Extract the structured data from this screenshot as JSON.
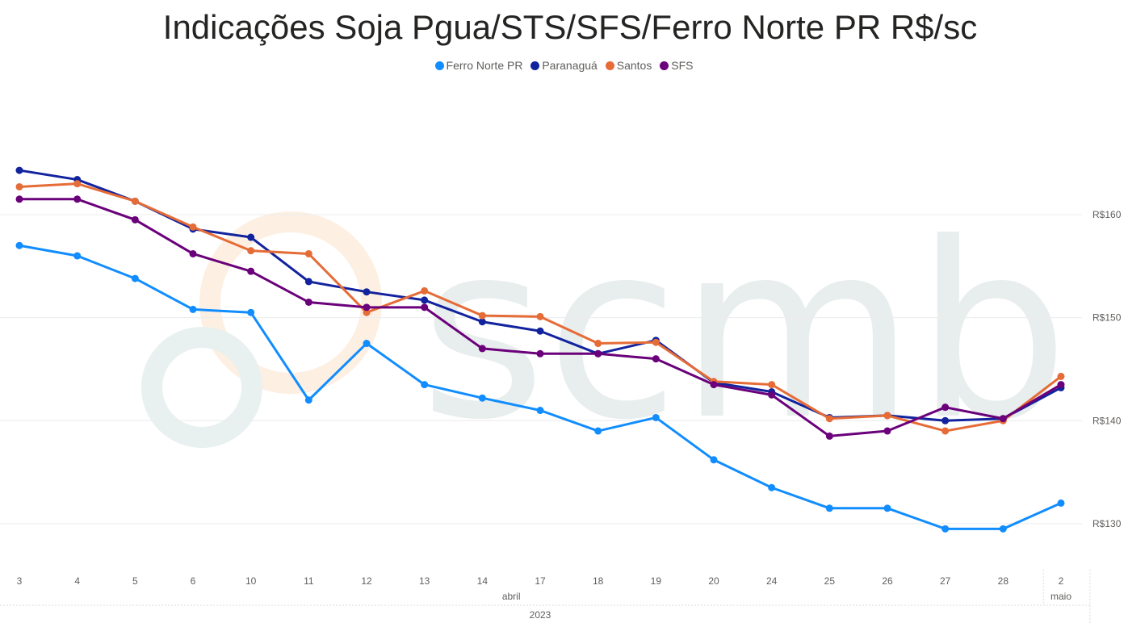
{
  "chart_data": {
    "type": "line",
    "title": "Indicações Soja Pgua/STS/SFS/Ferro Norte PR R$/sc",
    "categories": [
      "3",
      "4",
      "5",
      "6",
      "10",
      "11",
      "12",
      "13",
      "14",
      "17",
      "18",
      "19",
      "20",
      "24",
      "25",
      "26",
      "27",
      "28",
      "2"
    ],
    "month_labels": [
      {
        "label": "abril",
        "from": 0,
        "to": 17
      },
      {
        "label": "maio",
        "from": 18,
        "to": 18
      }
    ],
    "year_label": "2023",
    "y_ticks": [
      "R$130",
      "R$140",
      "R$150",
      "R$160"
    ],
    "y_tick_values": [
      130,
      140,
      150,
      160
    ],
    "ylim": [
      126,
      173
    ],
    "grid": true,
    "legend_position": "top-center",
    "series": [
      {
        "name": "Ferro Norte PR",
        "color": "#118DFF",
        "values": [
          157.0,
          156.0,
          153.8,
          150.8,
          150.5,
          142.0,
          147.5,
          143.5,
          142.2,
          141.0,
          139.0,
          140.3,
          136.2,
          133.5,
          131.5,
          131.5,
          129.5,
          129.5,
          132.0
        ]
      },
      {
        "name": "Paranaguá",
        "color": "#12239E",
        "values": [
          164.3,
          163.4,
          161.3,
          158.6,
          157.8,
          153.5,
          152.5,
          151.7,
          149.6,
          148.7,
          146.5,
          147.8,
          143.7,
          142.8,
          140.3,
          140.5,
          140.0,
          140.2,
          143.2
        ]
      },
      {
        "name": "Santos",
        "color": "#E66C37",
        "values": [
          162.7,
          163.0,
          161.3,
          158.8,
          156.5,
          156.2,
          150.5,
          152.6,
          150.2,
          150.1,
          147.5,
          147.6,
          143.8,
          143.5,
          140.2,
          140.5,
          139.0,
          140.0,
          144.3
        ]
      },
      {
        "name": "SFS",
        "color": "#6B007B",
        "values": [
          161.5,
          161.5,
          159.5,
          156.2,
          154.5,
          151.5,
          151.0,
          151.0,
          147.0,
          146.5,
          146.5,
          146.0,
          143.5,
          142.5,
          138.5,
          139.0,
          141.3,
          140.2,
          143.5
        ]
      }
    ]
  },
  "watermark": {
    "text": "scmb"
  }
}
